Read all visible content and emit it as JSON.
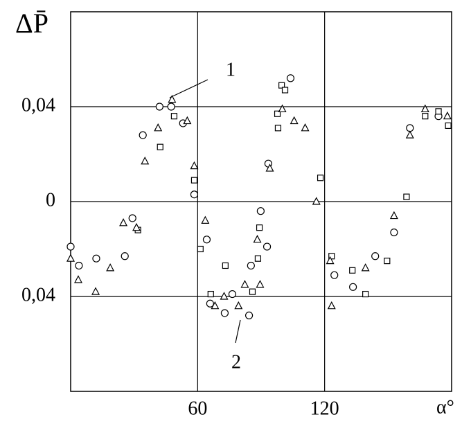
{
  "chart_data": {
    "type": "scatter",
    "y_label": "ΔP̄",
    "x_label": "α°",
    "annotations": [
      "1",
      "2"
    ],
    "xlim": [
      0,
      180
    ],
    "xticks": [
      60,
      120
    ],
    "ylim": [
      -0.08,
      0.08
    ],
    "yticks": [
      {
        "value": 0.04,
        "label": "0,04"
      },
      0,
      {
        "value": -0.04,
        "label": "0,04"
      }
    ],
    "grid": true,
    "series": [
      {
        "marker": "circle",
        "color": "#000000",
        "x": [
          0,
          3.9,
          12.1,
          25.6,
          29.2,
          34.1,
          42,
          47.5,
          53.1,
          58.4,
          64.3,
          65.9,
          72.8,
          76.4,
          84.3,
          85.2,
          89.8,
          92.8,
          93.4,
          103.9,
          124.6,
          133.4,
          143.9,
          152.8,
          160.3,
          173.8
        ],
        "values": [
          -0.019,
          -0.027,
          -0.024,
          -0.023,
          -0.007,
          0.028,
          0.04,
          0.04,
          0.033,
          0.003,
          -0.016,
          -0.043,
          -0.047,
          -0.039,
          -0.048,
          -0.027,
          -0.004,
          -0.019,
          0.016,
          0.052,
          -0.031,
          -0.036,
          -0.023,
          -0.013,
          0.031,
          0.036
        ]
      },
      {
        "marker": "square",
        "color": "#000000",
        "x": [
          31.8,
          42.3,
          48.9,
          58.4,
          61.3,
          66.2,
          73.1,
          85.9,
          88.5,
          89.2,
          99.7,
          101.3,
          97.7,
          98,
          118,
          123.3,
          133.1,
          139.3,
          149.5,
          158.7,
          167.5,
          173.8,
          178.4
        ],
        "values": [
          -0.012,
          0.023,
          0.036,
          0.009,
          -0.02,
          -0.039,
          -0.027,
          -0.038,
          -0.024,
          -0.011,
          0.049,
          0.047,
          0.037,
          0.031,
          0.01,
          -0.023,
          -0.029,
          -0.039,
          -0.025,
          0.002,
          0.036,
          0.038,
          0.032
        ]
      },
      {
        "marker": "triangle",
        "color": "#000000",
        "x": [
          0,
          3.6,
          11.8,
          18.7,
          24.9,
          31.1,
          35.1,
          41.3,
          47.9,
          55.1,
          58.4,
          63.6,
          68.2,
          72.5,
          79.3,
          82.3,
          88.2,
          89.5,
          94.1,
          100,
          105.6,
          110.8,
          116.1,
          122.6,
          123.3,
          139.3,
          152.8,
          160.3,
          167.5,
          178
        ],
        "values": [
          -0.024,
          -0.033,
          -0.038,
          -0.028,
          -0.009,
          -0.011,
          0.017,
          0.031,
          0.043,
          0.034,
          0.015,
          -0.008,
          -0.044,
          -0.04,
          -0.044,
          -0.035,
          -0.016,
          -0.035,
          0.014,
          0.039,
          0.034,
          0.031,
          0,
          -0.025,
          -0.044,
          -0.028,
          -0.006,
          0.028,
          0.039,
          0.036
        ]
      }
    ]
  }
}
